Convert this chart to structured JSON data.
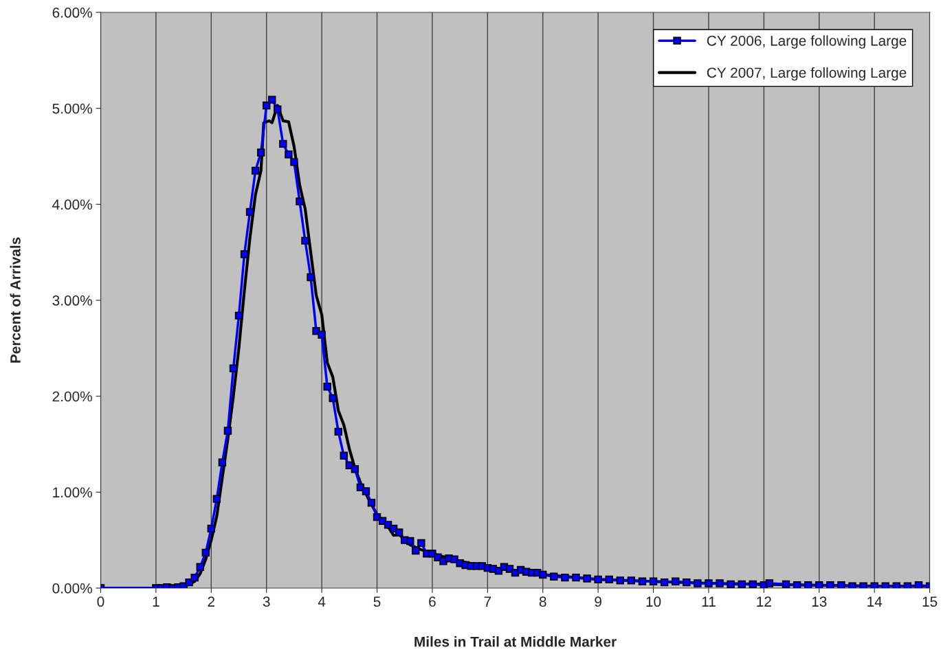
{
  "chart_data": {
    "type": "line",
    "xlabel": "Miles in Trail at Middle Marker",
    "ylabel": "Percent of Arrivals",
    "xlim": [
      0,
      15
    ],
    "xticks": [
      0,
      1,
      2,
      3,
      4,
      5,
      6,
      7,
      8,
      9,
      10,
      11,
      12,
      13,
      14,
      15
    ],
    "ylim": [
      0,
      6
    ],
    "yticks": [
      {
        "value": 0,
        "label": "0.00%"
      },
      {
        "value": 1,
        "label": "1.00%"
      },
      {
        "value": 2,
        "label": "2.00%"
      },
      {
        "value": 3,
        "label": "3.00%"
      },
      {
        "value": 4,
        "label": "4.00%"
      },
      {
        "value": 5,
        "label": "5.00%"
      },
      {
        "value": 6,
        "label": "6.00%"
      }
    ],
    "grid": "x",
    "legend": "top right",
    "series": [
      {
        "name": "CY 2006, Large following Large",
        "color": "#0000ff",
        "marker": "square",
        "x": [
          0,
          1.0,
          1.1,
          1.2,
          1.3,
          1.4,
          1.5,
          1.6,
          1.7,
          1.8,
          1.9,
          2.0,
          2.1,
          2.2,
          2.3,
          2.4,
          2.5,
          2.6,
          2.7,
          2.8,
          2.9,
          3.0,
          3.1,
          3.2,
          3.3,
          3.4,
          3.5,
          3.6,
          3.7,
          3.8,
          3.9,
          4.0,
          4.1,
          4.2,
          4.3,
          4.4,
          4.5,
          4.6,
          4.7,
          4.8,
          4.9,
          5.0,
          5.1,
          5.2,
          5.3,
          5.4,
          5.5,
          5.6,
          5.7,
          5.8,
          5.9,
          6.0,
          6.1,
          6.2,
          6.3,
          6.4,
          6.5,
          6.6,
          6.7,
          6.8,
          6.9,
          7.0,
          7.1,
          7.2,
          7.3,
          7.4,
          7.5,
          7.6,
          7.7,
          7.8,
          7.9,
          8.0,
          8.2,
          8.4,
          8.6,
          8.8,
          9.0,
          9.2,
          9.4,
          9.6,
          9.8,
          10.0,
          10.2,
          10.4,
          10.6,
          10.8,
          11.0,
          11.2,
          11.4,
          11.6,
          11.8,
          12.0,
          12.1,
          12.4,
          12.6,
          12.8,
          13.0,
          13.2,
          13.4,
          13.6,
          13.8,
          14.0,
          14.2,
          14.4,
          14.6,
          14.8,
          15.0
        ],
        "values": [
          0,
          0.0,
          0.0,
          0.01,
          0.0,
          0.01,
          0.02,
          0.06,
          0.11,
          0.22,
          0.37,
          0.62,
          0.93,
          1.31,
          1.64,
          2.29,
          2.84,
          3.48,
          3.92,
          4.35,
          4.54,
          5.03,
          5.09,
          4.99,
          4.63,
          4.52,
          4.44,
          4.03,
          3.62,
          3.24,
          2.68,
          2.64,
          2.1,
          1.98,
          1.63,
          1.38,
          1.28,
          1.24,
          1.05,
          1.01,
          0.89,
          0.74,
          0.7,
          0.66,
          0.62,
          0.58,
          0.5,
          0.49,
          0.39,
          0.47,
          0.36,
          0.36,
          0.32,
          0.28,
          0.31,
          0.3,
          0.26,
          0.24,
          0.23,
          0.23,
          0.23,
          0.21,
          0.2,
          0.18,
          0.22,
          0.2,
          0.16,
          0.19,
          0.17,
          0.16,
          0.16,
          0.14,
          0.12,
          0.11,
          0.11,
          0.1,
          0.09,
          0.09,
          0.08,
          0.08,
          0.07,
          0.07,
          0.06,
          0.07,
          0.06,
          0.05,
          0.05,
          0.05,
          0.04,
          0.04,
          0.04,
          0.03,
          0.05,
          0.04,
          0.03,
          0.03,
          0.03,
          0.03,
          0.03,
          0.02,
          0.02,
          0.02,
          0.02,
          0.02,
          0.02,
          0.03,
          0.02
        ]
      },
      {
        "name": "CY 2007, Large following Large",
        "color": "#000000",
        "marker": "none",
        "x": [
          0,
          1.0,
          1.5,
          1.7,
          1.8,
          1.9,
          2.0,
          2.1,
          2.2,
          2.3,
          2.4,
          2.5,
          2.6,
          2.7,
          2.8,
          2.9,
          2.95,
          3.05,
          3.1,
          3.2,
          3.3,
          3.4,
          3.5,
          3.6,
          3.7,
          3.8,
          3.9,
          4.0,
          4.1,
          4.2,
          4.3,
          4.4,
          4.5,
          4.6,
          4.7,
          4.8,
          4.9,
          5.0,
          5.2,
          5.3,
          5.4,
          5.5,
          5.6,
          5.8,
          6.0,
          6.5,
          7.0,
          8.0,
          9.0,
          10.0,
          11.0,
          12.0,
          13.0,
          14.0,
          15.0
        ],
        "values": [
          0,
          0,
          0.01,
          0.07,
          0.15,
          0.3,
          0.5,
          0.75,
          1.15,
          1.55,
          2.0,
          2.5,
          3.1,
          3.65,
          4.1,
          4.35,
          4.85,
          4.87,
          4.85,
          5.03,
          4.87,
          4.86,
          4.6,
          4.2,
          3.95,
          3.5,
          3.05,
          2.85,
          2.35,
          2.2,
          1.85,
          1.7,
          1.45,
          1.25,
          1.1,
          0.98,
          0.87,
          0.77,
          0.64,
          0.55,
          0.56,
          0.5,
          0.45,
          0.4,
          0.36,
          0.28,
          0.22,
          0.14,
          0.09,
          0.07,
          0.05,
          0.04,
          0.03,
          0.02,
          0.02
        ]
      }
    ]
  }
}
